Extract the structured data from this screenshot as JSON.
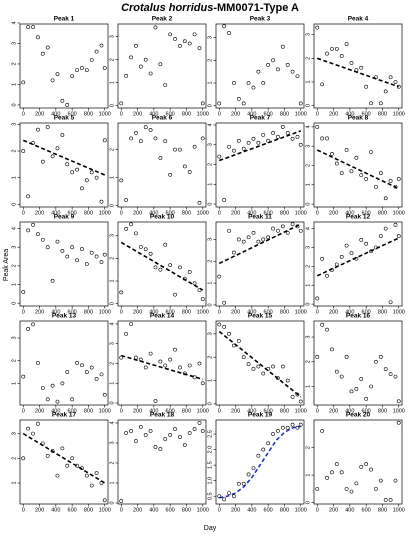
{
  "figure": {
    "title": [
      "Crotalus horridus",
      "-MM0071-Type A"
    ],
    "xlabel": "Day",
    "ylabel": "Peak Area"
  },
  "chart_data": [
    {
      "type": "scatter",
      "title": "Peak 1",
      "x": [
        0,
        60,
        120,
        180,
        240,
        300,
        360,
        420,
        480,
        540,
        600,
        660,
        720,
        780,
        840,
        900,
        960,
        1000
      ],
      "values": [
        1.1,
        3.8,
        3.8,
        3.3,
        2.5,
        2.8,
        1.2,
        1.5,
        0.2,
        0,
        1.4,
        1.7,
        1.8,
        1.7,
        2.2,
        2.6,
        2.9,
        1.8
      ],
      "xlim": [
        -40,
        1040
      ],
      "ylim": [
        -0.15,
        3.95
      ],
      "xticks": [
        0,
        200,
        400,
        600,
        800,
        1000
      ],
      "yticks": [
        0,
        1,
        2,
        3,
        4
      ]
    },
    {
      "type": "scatter",
      "title": "Peak 2",
      "x": [
        0,
        60,
        120,
        180,
        240,
        300,
        360,
        420,
        480,
        540,
        600,
        660,
        720,
        780,
        840,
        900,
        960,
        1000
      ],
      "values": [
        0.1,
        1.3,
        2.1,
        2.6,
        1.7,
        2.0,
        1.4,
        3.4,
        1.8,
        0.9,
        3.1,
        2.9,
        2.6,
        2.8,
        2.7,
        3.1,
        2.5,
        0.1
      ],
      "xlim": [
        -40,
        1040
      ],
      "ylim": [
        -0.1,
        3.55
      ],
      "xticks": [
        0,
        200,
        400,
        600,
        800,
        1000
      ],
      "yticks": [
        0,
        1,
        2,
        3
      ]
    },
    {
      "type": "scatter",
      "title": "Peak 3",
      "x": [
        0,
        60,
        120,
        180,
        240,
        300,
        360,
        420,
        480,
        540,
        600,
        660,
        720,
        780,
        840,
        900,
        960,
        1000
      ],
      "values": [
        0.1,
        3.5,
        3.2,
        1.0,
        0.3,
        0.1,
        1.0,
        0.8,
        1.5,
        1.0,
        1.8,
        2.0,
        1.6,
        2.6,
        1.8,
        1.5,
        1.3,
        0.1
      ],
      "xlim": [
        -40,
        1040
      ],
      "ylim": [
        -0.1,
        3.6
      ],
      "xticks": [
        0,
        200,
        400,
        600,
        800,
        1000
      ],
      "yticks": [
        0,
        1,
        2,
        3
      ]
    },
    {
      "type": "scatter",
      "title": "Peak 4",
      "x": [
        0,
        60,
        120,
        180,
        240,
        300,
        360,
        420,
        480,
        540,
        600,
        660,
        720,
        780,
        840,
        900,
        960,
        1000
      ],
      "values": [
        3.3,
        0.9,
        2.2,
        2.4,
        2.4,
        2.1,
        2.6,
        1.8,
        1.5,
        1.6,
        0.8,
        0.1,
        1.2,
        0.1,
        0.6,
        1.2,
        1.0,
        0.8
      ],
      "xlim": [
        -40,
        1040
      ],
      "ylim": [
        -0.1,
        3.45
      ],
      "xticks": [
        0,
        200,
        400,
        600,
        800,
        1000
      ],
      "yticks": [
        0,
        1,
        2,
        3
      ],
      "trend": {
        "x": [
          0,
          1000
        ],
        "y": [
          2.0,
          0.8
        ],
        "color": "#000000"
      }
    },
    {
      "type": "scatter",
      "title": "Peak 5",
      "x": [
        0,
        60,
        120,
        180,
        240,
        300,
        360,
        420,
        480,
        540,
        600,
        660,
        720,
        780,
        840,
        900,
        960,
        1000
      ],
      "values": [
        2.0,
        0.3,
        2.3,
        2.8,
        1.6,
        2.9,
        1.8,
        2.1,
        2.6,
        1.5,
        1.2,
        1.3,
        0.6,
        0.9,
        1.2,
        1.0,
        0.1,
        2.4
      ],
      "xlim": [
        -40,
        1040
      ],
      "ylim": [
        -0.1,
        3.05
      ],
      "xticks": [
        0,
        200,
        400,
        600,
        800,
        1000
      ],
      "yticks": [
        0,
        1,
        2,
        3
      ],
      "trend": {
        "x": [
          0,
          1000
        ],
        "y": [
          2.4,
          1.1
        ],
        "color": "#000000"
      }
    },
    {
      "type": "scatter",
      "title": "Peak 6",
      "x": [
        0,
        60,
        120,
        180,
        240,
        300,
        360,
        420,
        480,
        540,
        600,
        660,
        720,
        780,
        840,
        900,
        960,
        1000
      ],
      "values": [
        0.9,
        0.2,
        2.4,
        2.6,
        2.3,
        2.8,
        2.7,
        2.4,
        1.7,
        2.3,
        1.1,
        2.0,
        2.0,
        1.4,
        1.2,
        2.1,
        0.1,
        2.4
      ],
      "xlim": [
        -40,
        1040
      ],
      "ylim": [
        -0.05,
        2.95
      ],
      "xticks": [
        0,
        200,
        400,
        600,
        800,
        1000
      ],
      "yticks": [
        0,
        1,
        2
      ]
    },
    {
      "type": "scatter",
      "title": "Peak 7",
      "x": [
        0,
        60,
        120,
        180,
        240,
        300,
        360,
        420,
        480,
        540,
        600,
        660,
        720,
        780,
        840,
        900,
        960,
        1000
      ],
      "values": [
        2.4,
        0.2,
        2.9,
        2.7,
        3.2,
        2.8,
        3.1,
        3.3,
        3.1,
        3.5,
        3.2,
        3.6,
        3.4,
        3.9,
        3.6,
        3.3,
        3.4,
        3.0
      ],
      "xlim": [
        -40,
        1040
      ],
      "ylim": [
        -0.15,
        4.1
      ],
      "xticks": [
        0,
        200,
        400,
        600,
        800,
        1000
      ],
      "yticks": [
        0,
        1,
        2,
        3,
        4
      ],
      "trend": {
        "x": [
          0,
          1000
        ],
        "y": [
          2.2,
          3.7
        ],
        "color": "#000000"
      }
    },
    {
      "type": "scatter",
      "title": "Peak 8",
      "x": [
        0,
        60,
        120,
        180,
        240,
        300,
        360,
        420,
        480,
        540,
        600,
        660,
        720,
        780,
        840,
        900,
        960,
        1000
      ],
      "values": [
        4.0,
        3.4,
        3.4,
        2.6,
        2.1,
        1.6,
        2.8,
        1.7,
        2.4,
        1.5,
        1.3,
        2.7,
        0.9,
        1.6,
        0.3,
        1.2,
        0.9,
        1.3
      ],
      "xlim": [
        -40,
        1040
      ],
      "ylim": [
        -0.15,
        4.2
      ],
      "xticks": [
        0,
        200,
        400,
        600,
        800,
        1000
      ],
      "yticks": [
        0,
        1,
        2,
        3,
        4
      ],
      "trend": {
        "x": [
          0,
          1000
        ],
        "y": [
          2.8,
          0.8
        ],
        "color": "#000000"
      }
    },
    {
      "type": "scatter",
      "title": "Peak 9",
      "x": [
        0,
        60,
        120,
        180,
        240,
        300,
        360,
        420,
        480,
        540,
        600,
        660,
        720,
        780,
        840,
        900,
        960,
        1000
      ],
      "values": [
        0.6,
        3.9,
        4.2,
        3.7,
        3.4,
        3.0,
        1.2,
        3.3,
        2.8,
        2.5,
        3.0,
        2.3,
        2.9,
        2.1,
        2.7,
        2.5,
        2.2,
        2.6
      ],
      "xlim": [
        -40,
        1040
      ],
      "ylim": [
        -0.15,
        4.35
      ],
      "xticks": [
        0,
        200,
        400,
        600,
        800,
        1000
      ],
      "yticks": [
        0,
        1,
        2,
        3,
        4
      ]
    },
    {
      "type": "scatter",
      "title": "Peak 10",
      "x": [
        0,
        60,
        120,
        180,
        240,
        300,
        360,
        420,
        480,
        540,
        600,
        660,
        720,
        780,
        840,
        900,
        960,
        1000
      ],
      "values": [
        0.5,
        3.3,
        3.5,
        3.1,
        2.5,
        2.4,
        2.2,
        1.6,
        1.5,
        2.6,
        1.7,
        0.4,
        1.6,
        1.1,
        1.4,
        0.9,
        0.6,
        0.2
      ],
      "xlim": [
        -40,
        1040
      ],
      "ylim": [
        -0.1,
        3.6
      ],
      "xticks": [
        0,
        200,
        400,
        600,
        800,
        1000
      ],
      "yticks": [
        0,
        1,
        2,
        3
      ],
      "trend": {
        "x": [
          0,
          1000
        ],
        "y": [
          2.7,
          0.6
        ],
        "color": "#000000"
      }
    },
    {
      "type": "scatter",
      "title": "Peak 11",
      "x": [
        0,
        60,
        120,
        180,
        240,
        300,
        360,
        420,
        480,
        540,
        600,
        660,
        720,
        780,
        840,
        900,
        960,
        1000
      ],
      "values": [
        1.3,
        0.1,
        3.4,
        2.4,
        3.0,
        2.9,
        3.1,
        3.3,
        2.9,
        3.0,
        3.1,
        3.5,
        3.4,
        3.6,
        3.3,
        3.7,
        3.6,
        3.4
      ],
      "xlim": [
        -40,
        1040
      ],
      "ylim": [
        -0.05,
        3.8
      ],
      "xticks": [
        0,
        200,
        400,
        600,
        800,
        1000
      ],
      "yticks": [
        0,
        1,
        2,
        3
      ],
      "trend": {
        "x": [
          0,
          1000
        ],
        "y": [
          1.9,
          3.7
        ],
        "color": "#000000"
      }
    },
    {
      "type": "scatter",
      "title": "Peak 12",
      "x": [
        0,
        60,
        120,
        180,
        240,
        300,
        360,
        420,
        480,
        540,
        600,
        660,
        720,
        780,
        840,
        900,
        960,
        1000
      ],
      "values": [
        0.3,
        2.4,
        1.5,
        1.8,
        2.1,
        2.5,
        3.1,
        2.7,
        2.4,
        3.4,
        3.2,
        2.8,
        3.0,
        3.6,
        4.0,
        0.1,
        4.2,
        3.6
      ],
      "xlim": [
        -40,
        1040
      ],
      "ylim": [
        -0.1,
        4.35
      ],
      "xticks": [
        0,
        200,
        400,
        600,
        800,
        1000
      ],
      "yticks": [
        0,
        1,
        2,
        3,
        4
      ],
      "trend": {
        "x": [
          0,
          1000
        ],
        "y": [
          1.5,
          3.5
        ],
        "color": "#000000"
      }
    },
    {
      "type": "scatter",
      "title": "Peak 13",
      "x": [
        0,
        60,
        120,
        180,
        240,
        300,
        360,
        420,
        480,
        540,
        600,
        660,
        720,
        780,
        840,
        900,
        960,
        1000
      ],
      "values": [
        1.3,
        3.4,
        3.6,
        1.9,
        0.8,
        0.3,
        0.9,
        0.2,
        1.0,
        1.5,
        0.3,
        1.9,
        1.8,
        1.5,
        1.7,
        1.2,
        1.4,
        0.5
      ],
      "xlim": [
        -40,
        1040
      ],
      "ylim": [
        0.05,
        3.75
      ],
      "xticks": [
        0,
        200,
        400,
        600,
        800,
        1000
      ],
      "yticks": [
        1,
        2,
        3
      ]
    },
    {
      "type": "scatter",
      "title": "Peak 14",
      "x": [
        0,
        60,
        120,
        180,
        240,
        300,
        360,
        420,
        480,
        540,
        600,
        660,
        720,
        780,
        840,
        900,
        960,
        1000
      ],
      "values": [
        2.3,
        3.5,
        4.0,
        2.3,
        2.2,
        1.8,
        2.5,
        0.1,
        2.1,
        1.9,
        2.2,
        2.7,
        1.8,
        1.5,
        1.9,
        1.3,
        2.0,
        1.0
      ],
      "xlim": [
        -40,
        1040
      ],
      "ylim": [
        -0.1,
        4.15
      ],
      "xticks": [
        0,
        200,
        400,
        600,
        800,
        1000
      ],
      "yticks": [
        0,
        1,
        2,
        3,
        4
      ],
      "trend": {
        "x": [
          0,
          1000
        ],
        "y": [
          2.4,
          1.2
        ],
        "color": "#000000"
      }
    },
    {
      "type": "scatter",
      "title": "Peak 15",
      "x": [
        0,
        60,
        120,
        180,
        240,
        300,
        360,
        420,
        480,
        540,
        600,
        660,
        720,
        780,
        840,
        900,
        960,
        1000
      ],
      "values": [
        3.4,
        3.3,
        3.0,
        2.5,
        2.7,
        2.0,
        1.7,
        1.5,
        1.6,
        1.3,
        1.5,
        1.6,
        1.1,
        1.6,
        1.0,
        0.3,
        0.4,
        0.1
      ],
      "xlim": [
        -40,
        1040
      ],
      "ylim": [
        -0.05,
        3.55
      ],
      "xticks": [
        0,
        200,
        400,
        600,
        800,
        1000
      ],
      "yticks": [
        0,
        1,
        2,
        3
      ],
      "trend": {
        "x": [
          0,
          1000
        ],
        "y": [
          3.1,
          0.3
        ],
        "color": "#000000"
      }
    },
    {
      "type": "scatter",
      "title": "Peak 16",
      "x": [
        0,
        60,
        120,
        180,
        240,
        300,
        360,
        420,
        480,
        540,
        600,
        660,
        720,
        780,
        840,
        900,
        960,
        1000
      ],
      "values": [
        2.2,
        3.5,
        3.3,
        2.5,
        1.6,
        1.4,
        2.2,
        0.8,
        0.9,
        1.3,
        0.5,
        1.0,
        2.0,
        2.2,
        1.7,
        1.5,
        1.4,
        0.4
      ],
      "xlim": [
        -40,
        1040
      ],
      "ylim": [
        0.25,
        3.65
      ],
      "xticks": [
        0,
        200,
        400,
        600,
        800,
        1000
      ],
      "yticks": [
        1,
        2,
        3
      ]
    },
    {
      "type": "scatter",
      "title": "Peak 17",
      "x": [
        0,
        60,
        120,
        180,
        240,
        300,
        360,
        420,
        480,
        540,
        600,
        660,
        720,
        780,
        840,
        900,
        960,
        1000
      ],
      "values": [
        2.0,
        3.2,
        3.0,
        3.4,
        2.6,
        2.1,
        2.3,
        1.3,
        2.4,
        1.7,
        2.0,
        1.7,
        1.6,
        1.3,
        0.9,
        1.4,
        1.0,
        0.3
      ],
      "xlim": [
        -40,
        1040
      ],
      "ylim": [
        0.15,
        3.55
      ],
      "xticks": [
        0,
        200,
        400,
        600,
        800,
        1000
      ],
      "yticks": [
        1,
        2,
        3
      ],
      "trend": {
        "x": [
          0,
          1000
        ],
        "y": [
          3.0,
          1.0
        ],
        "color": "#000000"
      }
    },
    {
      "type": "scatter",
      "title": "Peak 18",
      "x": [
        0,
        60,
        120,
        180,
        240,
        300,
        360,
        420,
        480,
        540,
        600,
        660,
        720,
        780,
        840,
        900,
        960,
        1000
      ],
      "values": [
        0.1,
        3.5,
        3.6,
        3.1,
        3.8,
        3.4,
        3.6,
        2.8,
        2.7,
        3.2,
        3.4,
        3.7,
        3.3,
        2.9,
        3.5,
        3.7,
        4.0,
        3.6
      ],
      "xlim": [
        -40,
        1040
      ],
      "ylim": [
        -0.05,
        4.15
      ],
      "xticks": [
        0,
        200,
        400,
        600,
        800,
        1000
      ],
      "yticks": [
        0,
        1,
        2,
        3,
        4
      ]
    },
    {
      "type": "scatter",
      "title": "Peak 19",
      "x": [
        0,
        60,
        120,
        180,
        240,
        300,
        360,
        420,
        480,
        540,
        600,
        660,
        720,
        780,
        840,
        900,
        960,
        1000
      ],
      "values": [
        0.5,
        0.4,
        0.6,
        0.5,
        0.9,
        0.9,
        1.2,
        1.4,
        1.8,
        2.0,
        2.2,
        2.5,
        2.6,
        2.7,
        2.7,
        2.8,
        2.7,
        2.8
      ],
      "xlim": [
        -40,
        1040
      ],
      "ylim": [
        0.25,
        2.95
      ],
      "xticks": [
        0,
        200,
        400,
        600,
        800,
        1000
      ],
      "yticks": [
        {
          "value": 0.5,
          "label": "0.5"
        },
        {
          "value": 1,
          "label": "1.0"
        },
        {
          "value": 1.5,
          "label": "1.5"
        },
        {
          "value": 2,
          "label": "2.0"
        },
        {
          "value": 2.5,
          "label": "2.5"
        }
      ],
      "trend": {
        "x": [
          0,
          100,
          200,
          300,
          400,
          500,
          600,
          700,
          800,
          900,
          1000
        ],
        "y": [
          0.45,
          0.5,
          0.6,
          0.8,
          1.1,
          1.5,
          1.9,
          2.3,
          2.55,
          2.7,
          2.75
        ],
        "color": "#2233bb"
      }
    },
    {
      "type": "scatter",
      "title": "Peak 20",
      "x": [
        0,
        60,
        120,
        180,
        240,
        300,
        360,
        420,
        480,
        540,
        600,
        660,
        720,
        780,
        840,
        900,
        960,
        1000
      ],
      "values": [
        0.5,
        2.6,
        0.9,
        1.1,
        1.4,
        1.1,
        0.5,
        0.4,
        0.7,
        1.3,
        1.4,
        1.2,
        0.5,
        0.8,
        0.1,
        0.1,
        0.8,
        2.9
      ],
      "xlim": [
        -40,
        1040
      ],
      "ylim": [
        -0.05,
        3.0
      ],
      "xticks": [
        0,
        200,
        400,
        600,
        800,
        1000
      ],
      "yticks": [
        0,
        1,
        2
      ]
    }
  ]
}
